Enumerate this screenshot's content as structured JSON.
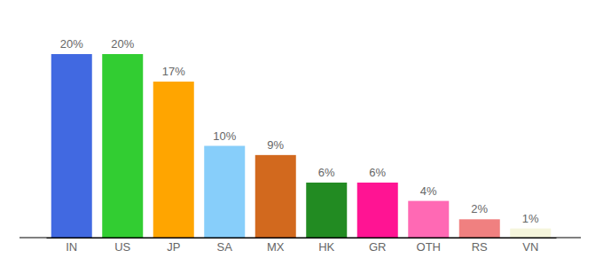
{
  "chart_data": {
    "type": "bar",
    "categories": [
      "IN",
      "US",
      "JP",
      "SA",
      "MX",
      "HK",
      "GR",
      "OTH",
      "RS",
      "VN"
    ],
    "values": [
      20,
      20,
      17,
      10,
      9,
      6,
      6,
      4,
      2,
      1
    ],
    "value_labels": [
      "20%",
      "20%",
      "17%",
      "10%",
      "9%",
      "6%",
      "6%",
      "4%",
      "2%",
      "1%"
    ],
    "colors": [
      "#4169e1",
      "#32cd32",
      "#ffa500",
      "#87cefa",
      "#d2691e",
      "#228b22",
      "#ff1493",
      "#ff69b4",
      "#f08080",
      "#f5f5dc"
    ],
    "ylim": [
      0,
      20
    ],
    "data_labels": true,
    "tick_labels": "x",
    "grid": false
  }
}
